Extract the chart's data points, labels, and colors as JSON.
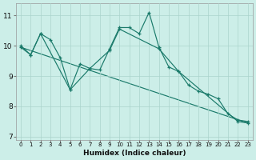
{
  "xlabel": "Humidex (Indice chaleur)",
  "bg_color": "#cceee8",
  "grid_color": "#aad4cc",
  "line_color": "#1a7a6a",
  "ylim": [
    6.9,
    11.4
  ],
  "xlim": [
    -0.5,
    23.5
  ],
  "yticks": [
    7,
    8,
    9,
    10,
    11
  ],
  "xticks": [
    0,
    1,
    2,
    3,
    4,
    5,
    6,
    7,
    8,
    9,
    10,
    11,
    12,
    13,
    14,
    15,
    16,
    17,
    18,
    19,
    20,
    21,
    22,
    23
  ],
  "main_x": [
    0,
    1,
    2,
    3,
    4,
    5,
    6,
    7,
    8,
    9,
    10,
    11,
    12,
    13,
    14,
    15,
    16,
    17,
    18,
    19,
    20,
    21,
    22,
    23
  ],
  "main_y": [
    10.0,
    9.7,
    10.4,
    10.2,
    9.6,
    8.55,
    9.4,
    9.25,
    9.2,
    9.9,
    10.6,
    10.6,
    10.4,
    11.1,
    9.95,
    9.3,
    9.15,
    8.7,
    8.5,
    8.4,
    8.25,
    7.75,
    7.55,
    7.5
  ],
  "smooth_x": [
    0,
    1,
    2,
    5,
    7,
    9,
    10,
    14,
    16,
    22,
    23
  ],
  "smooth_y": [
    9.95,
    9.7,
    10.4,
    8.55,
    9.25,
    9.85,
    10.55,
    9.9,
    9.15,
    7.5,
    7.45
  ],
  "trend_x": [
    0,
    23
  ],
  "trend_y": [
    9.95,
    7.45
  ]
}
